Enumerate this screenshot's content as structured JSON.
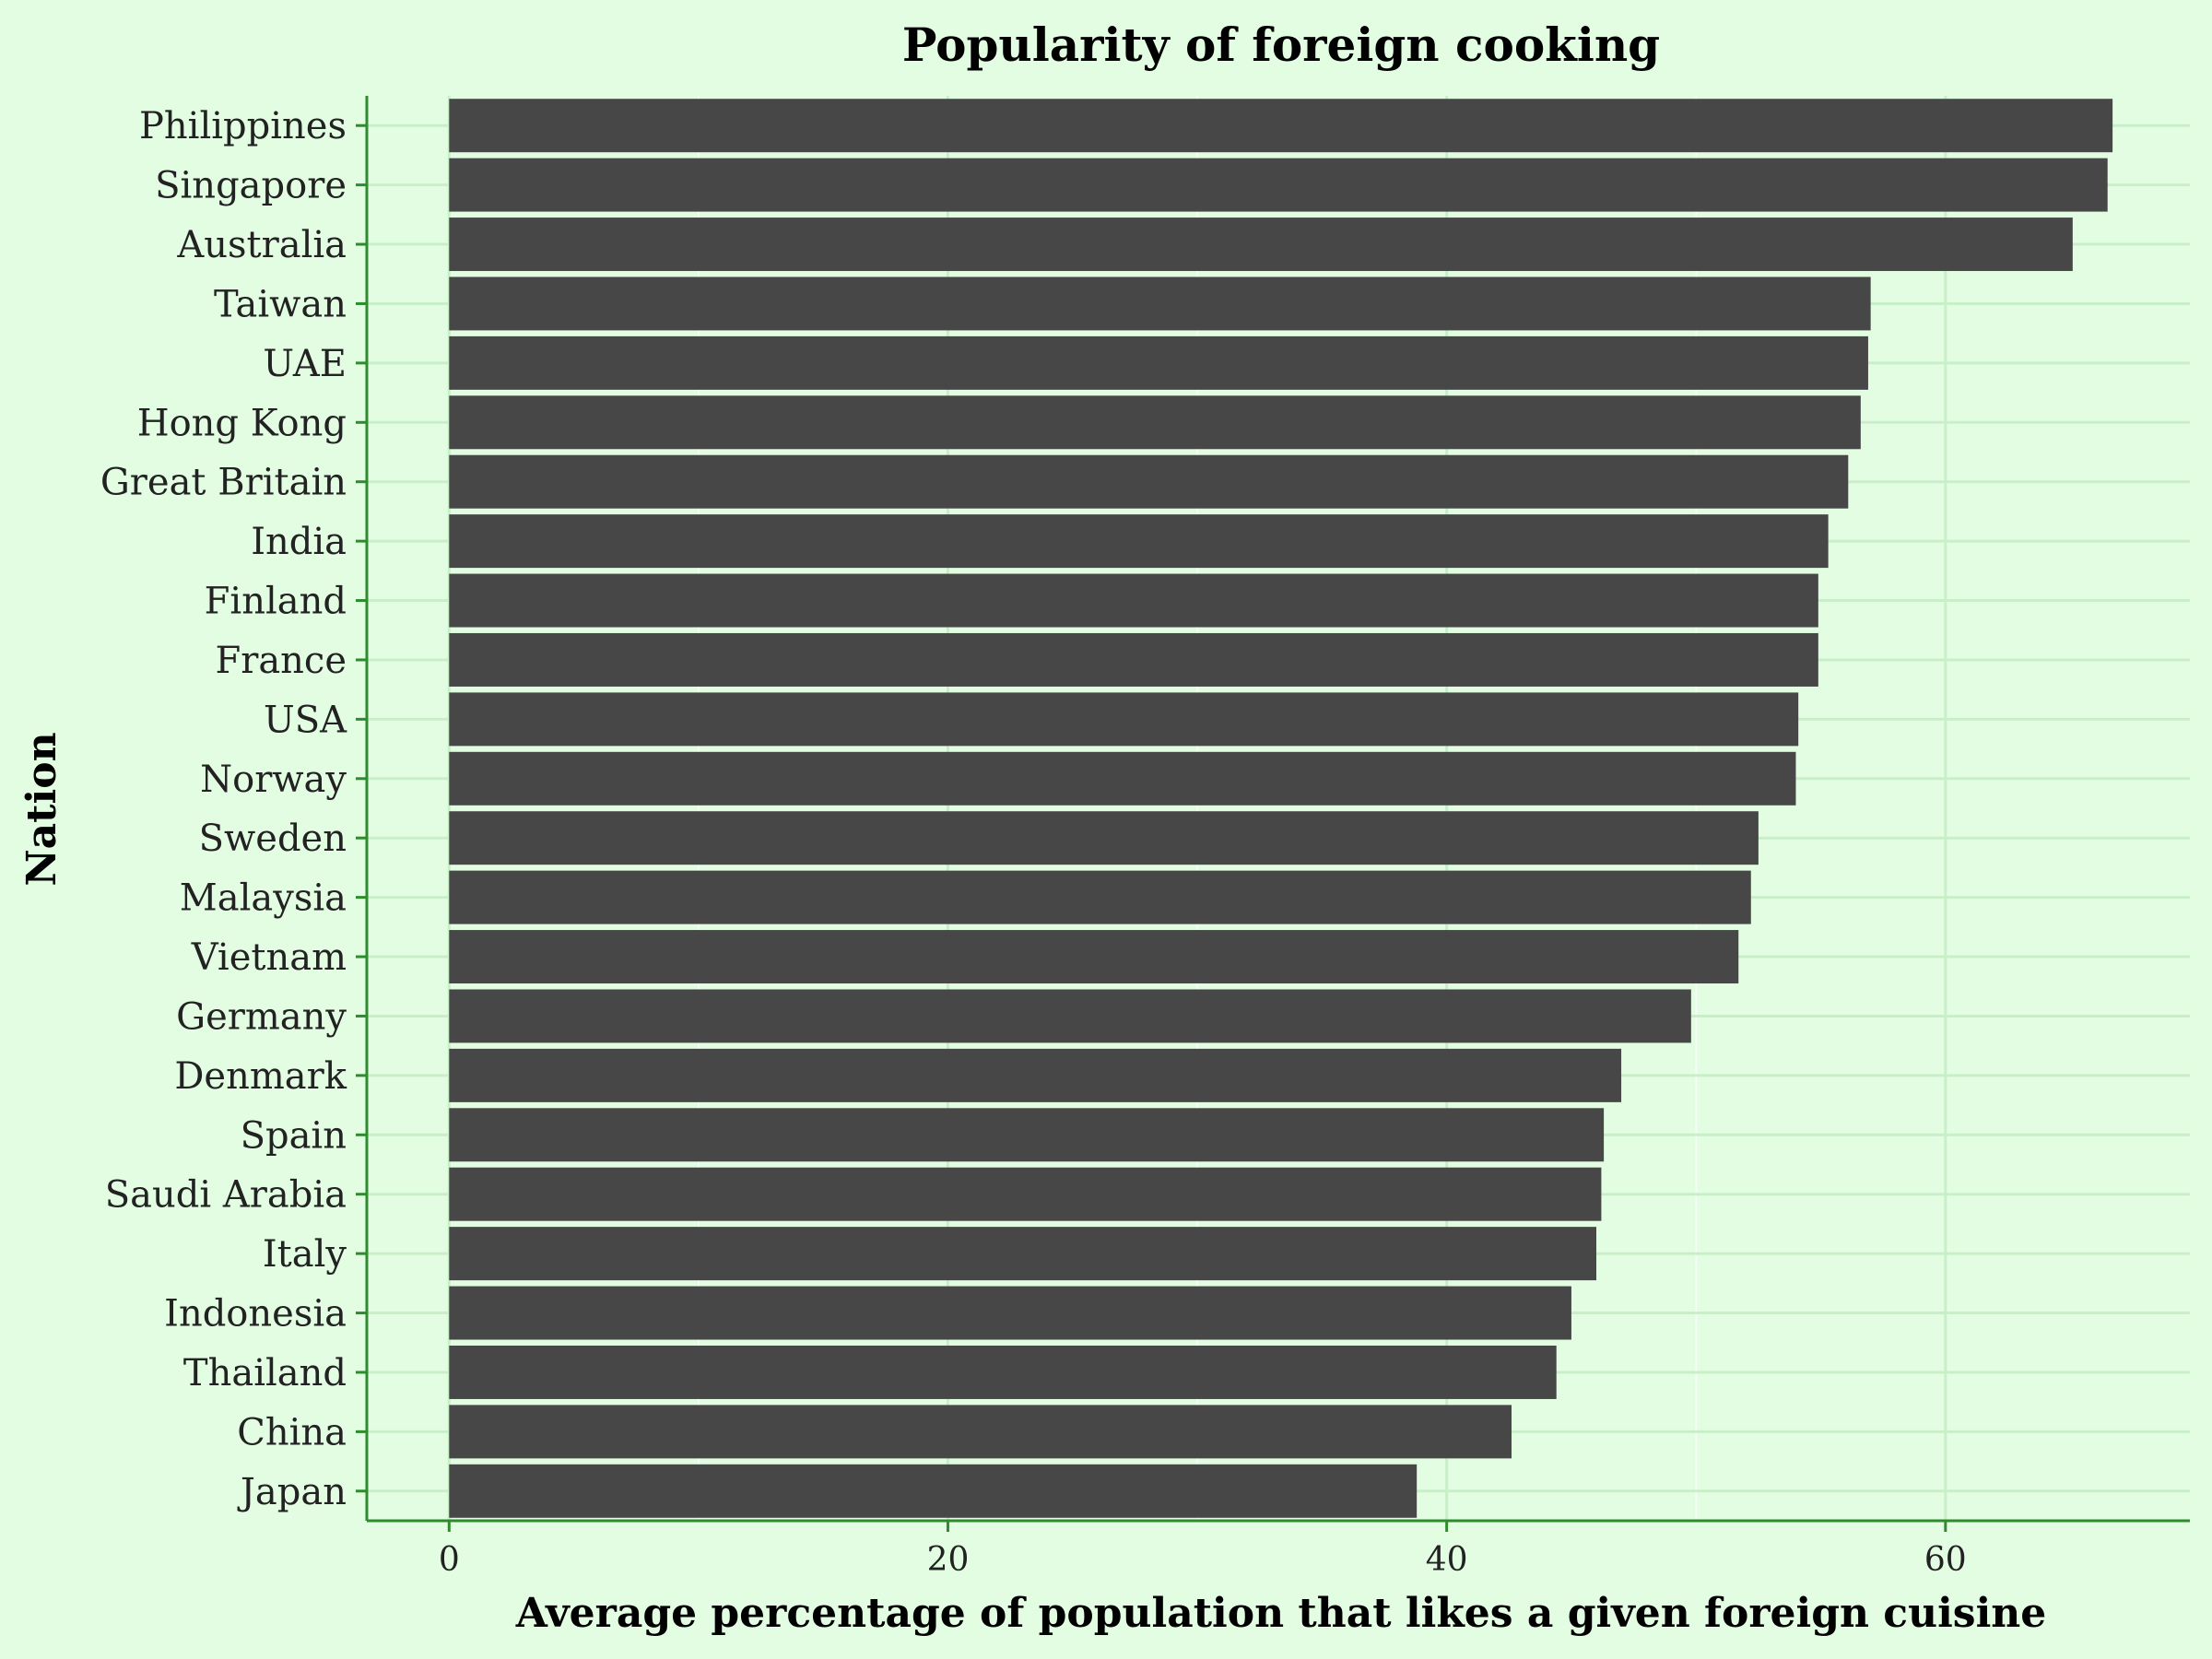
{
  "chart_data": {
    "type": "bar",
    "orientation": "horizontal",
    "title": "Popularity of foreign cooking",
    "xlabel": "Average percentage of population that likes a given foreign cuisine",
    "ylabel": "Nation",
    "xlim": [
      -3.3,
      69.8
    ],
    "xticks": [
      0,
      20,
      40,
      60
    ],
    "grid": true,
    "bar_color": "#474747",
    "background_color": "#e3fde3",
    "grid_color": "#c9efc9",
    "axis_color": "#2e8b2e",
    "categories": [
      "Philippines",
      "Singapore",
      "Australia",
      "Taiwan",
      "UAE",
      "Hong Kong",
      "Great Britain",
      "India",
      "Finland",
      "France",
      "USA",
      "Norway",
      "Sweden",
      "Malaysia",
      "Vietnam",
      "Germany",
      "Denmark",
      "Spain",
      "Saudi Arabia",
      "Italy",
      "Indonesia",
      "Thailand",
      "China",
      "Japan"
    ],
    "values": [
      66.7,
      66.5,
      65.1,
      57.0,
      56.9,
      56.6,
      56.1,
      55.3,
      54.9,
      54.9,
      54.1,
      54.0,
      52.5,
      52.2,
      51.7,
      49.8,
      47.0,
      46.3,
      46.2,
      46.0,
      45.0,
      44.4,
      42.6,
      38.8
    ]
  }
}
